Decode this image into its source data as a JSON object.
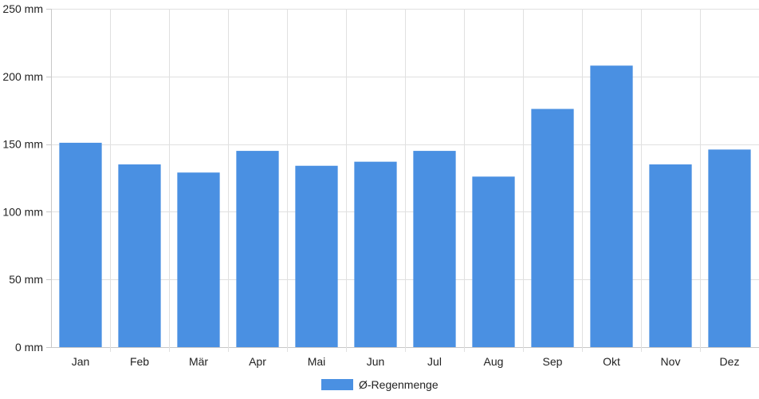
{
  "chart_data": {
    "type": "bar",
    "categories": [
      "Jan",
      "Feb",
      "Mär",
      "Apr",
      "Mai",
      "Jun",
      "Jul",
      "Aug",
      "Sep",
      "Okt",
      "Nov",
      "Dez"
    ],
    "series": [
      {
        "name": "Ø-Regenmenge",
        "values": [
          151,
          135,
          129,
          145,
          134,
          137,
          145,
          126,
          176,
          208,
          135,
          146
        ]
      }
    ],
    "ylim": [
      0,
      250
    ],
    "yticks": [
      0,
      50,
      100,
      150,
      200,
      250
    ],
    "ytick_suffix": " mm",
    "grid": true,
    "legend_position": "bottom"
  },
  "colors": {
    "bar": "#4a90e2",
    "grid": "#e0e0e0",
    "axis": "#c8c8c8",
    "text": "#222222"
  }
}
